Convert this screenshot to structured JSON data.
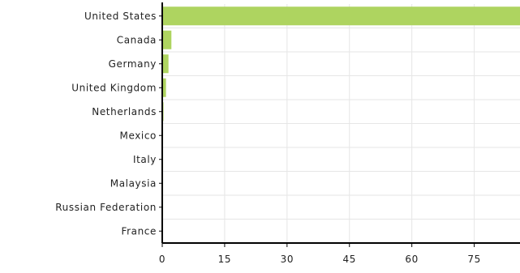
{
  "chart_data": {
    "type": "bar",
    "orientation": "horizontal",
    "categories": [
      "United States",
      "Canada",
      "Germany",
      "United Kingdom",
      "Netherlands",
      "Mexico",
      "Italy",
      "Malaysia",
      "Russian Federation",
      "France"
    ],
    "values": [
      90.5,
      2.2,
      1.5,
      0.9,
      0.3,
      0.2,
      0.2,
      0.2,
      0.2,
      0.1
    ],
    "xlim": [
      0,
      86
    ],
    "xticks": [
      0,
      15,
      30,
      45,
      60,
      75
    ],
    "xtick_labels": [
      "0",
      "15",
      "30",
      "45",
      "60",
      "75"
    ],
    "grid": true,
    "legend": "none",
    "colors": {
      "bar": "#aed460",
      "grid": "#e6e6e6",
      "axis": "#000000"
    },
    "title": "",
    "xlabel": "",
    "ylabel": ""
  }
}
